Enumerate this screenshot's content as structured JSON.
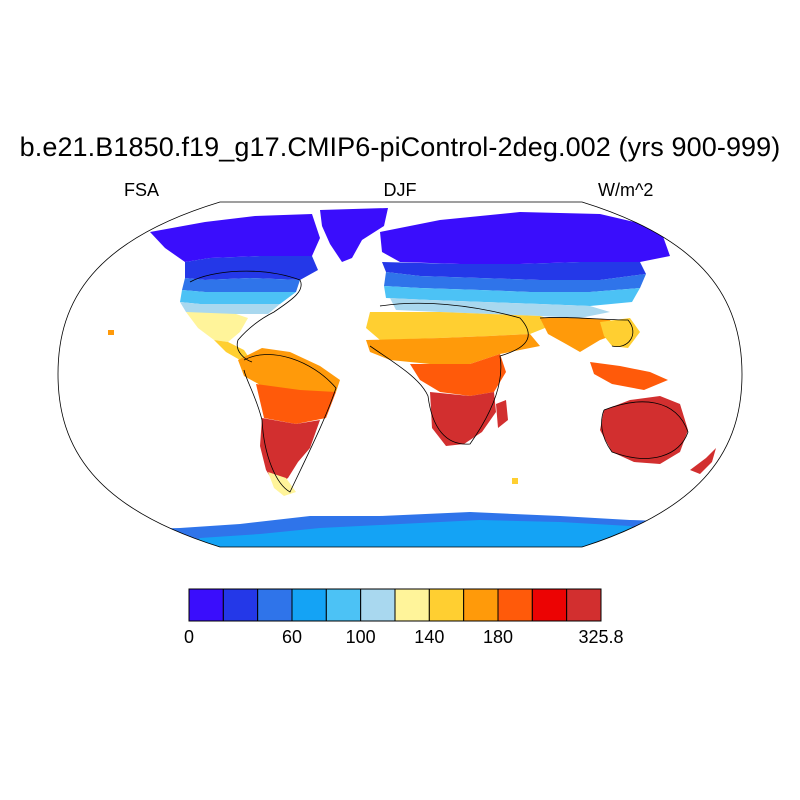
{
  "title": "b.e21.B1850.f19_g17.CMIP6-piControl-2deg.002 (yrs 900-999)",
  "variable": "FSA",
  "season": "DJF",
  "units": "W/m^2",
  "colorbar": {
    "colors": [
      "#3a0dfc",
      "#2438e8",
      "#2f74ea",
      "#14a3f5",
      "#4cc2f5",
      "#a9d8ef",
      "#fff49a",
      "#ffcf31",
      "#ff9a0a",
      "#ff5a0a",
      "#ec0303",
      "#d22f2f"
    ],
    "labels": [
      {
        "index": 0,
        "text": "0"
      },
      {
        "index": 3,
        "text": "60"
      },
      {
        "index": 5,
        "text": "100"
      },
      {
        "index": 7,
        "text": "140"
      },
      {
        "index": 9,
        "text": "180"
      },
      {
        "index": 12,
        "text": "325.8"
      }
    ]
  }
}
